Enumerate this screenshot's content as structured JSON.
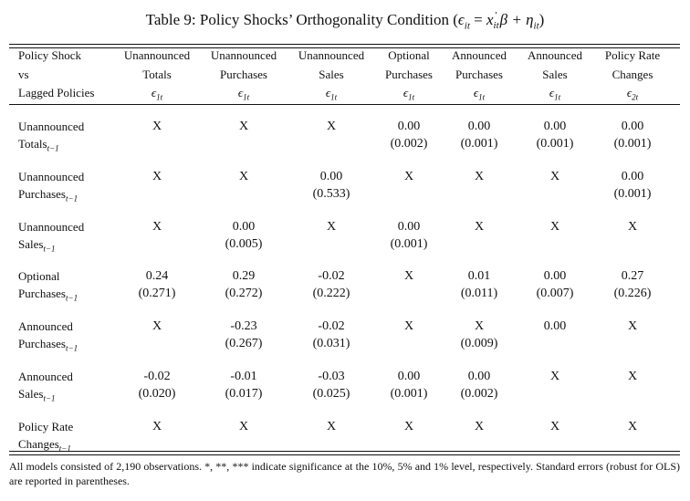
{
  "title": {
    "text": "Table 9: Policy Shocks’ Orthogonality Condition",
    "eq_open": "(",
    "eq_eps": "ϵ",
    "eq_sub1": "it",
    "eq_eq": " = ",
    "eq_x": "x",
    "eq_prime": "′",
    "eq_sub2": "it",
    "eq_beta": "β + η",
    "eq_sub3": "it",
    "eq_close": ")"
  },
  "header": {
    "label_lines": [
      "Policy Shock",
      "vs",
      "Lagged Policies"
    ],
    "columns": [
      {
        "line1": "Unannounced",
        "line2": "Totals",
        "eps": "ϵ",
        "sub": "1t"
      },
      {
        "line1": "Unannounced",
        "line2": "Purchases",
        "eps": "ϵ",
        "sub": "1t"
      },
      {
        "line1": "Unannounced",
        "line2": "Sales",
        "eps": "ϵ",
        "sub": "1t"
      },
      {
        "line1": "Optional",
        "line2": "Purchases",
        "eps": "ϵ",
        "sub": "1t"
      },
      {
        "line1": "Announced",
        "line2": "Purchases",
        "eps": "ϵ",
        "sub": "1t"
      },
      {
        "line1": "Announced",
        "line2": "Sales",
        "eps": "ϵ",
        "sub": "1t"
      },
      {
        "line1": "Policy Rate",
        "line2": "Changes",
        "eps": "ϵ",
        "sub": "2t"
      }
    ]
  },
  "rows": [
    {
      "line1": "Unannounced",
      "line2": "Totals",
      "sub": "t−1",
      "cells": [
        {
          "v": "X",
          "se": ""
        },
        {
          "v": "X",
          "se": ""
        },
        {
          "v": "X",
          "se": ""
        },
        {
          "v": "0.00",
          "se": "(0.002)"
        },
        {
          "v": "0.00",
          "se": "(0.001)"
        },
        {
          "v": "0.00",
          "se": "(0.001)"
        },
        {
          "v": "0.00",
          "se": "(0.001)"
        }
      ]
    },
    {
      "line1": "Unannounced",
      "line2": "Purchases",
      "sub": "t−1",
      "cells": [
        {
          "v": "X",
          "se": ""
        },
        {
          "v": "X",
          "se": ""
        },
        {
          "v": "0.00",
          "se": "(0.533)"
        },
        {
          "v": "X",
          "se": ""
        },
        {
          "v": "X",
          "se": ""
        },
        {
          "v": "X",
          "se": ""
        },
        {
          "v": "0.00",
          "se": "(0.001)"
        }
      ]
    },
    {
      "line1": "Unannounced",
      "line2": "Sales",
      "sub": "t−1",
      "cells": [
        {
          "v": "X",
          "se": ""
        },
        {
          "v": "0.00",
          "se": "(0.005)"
        },
        {
          "v": "X",
          "se": ""
        },
        {
          "v": "0.00",
          "se": "(0.001)"
        },
        {
          "v": "X",
          "se": ""
        },
        {
          "v": "X",
          "se": ""
        },
        {
          "v": "X",
          "se": ""
        }
      ]
    },
    {
      "line1": "Optional",
      "line2": "Purchases",
      "sub": "t−1",
      "cells": [
        {
          "v": "0.24",
          "se": "(0.271)"
        },
        {
          "v": "0.29",
          "se": "(0.272)"
        },
        {
          "v": "-0.02",
          "se": "(0.222)"
        },
        {
          "v": "X",
          "se": ""
        },
        {
          "v": "0.01",
          "se": "(0.011)"
        },
        {
          "v": "0.00",
          "se": "(0.007)"
        },
        {
          "v": "0.27",
          "se": "(0.226)"
        }
      ]
    },
    {
      "line1": "Announced",
      "line2": "Purchases",
      "sub": "t−1",
      "cells": [
        {
          "v": "X",
          "se": ""
        },
        {
          "v": "-0.23",
          "se": "(0.267)"
        },
        {
          "v": "-0.02",
          "se": "(0.031)"
        },
        {
          "v": "X",
          "se": ""
        },
        {
          "v": "X",
          "se": "(0.009)"
        },
        {
          "v": "0.00",
          "se": ""
        },
        {
          "v": "X",
          "se": ""
        }
      ]
    },
    {
      "line1": "Announced",
      "line2": "Sales",
      "sub": "t−1",
      "cells": [
        {
          "v": "-0.02",
          "se": "(0.020)"
        },
        {
          "v": "-0.01",
          "se": "(0.017)"
        },
        {
          "v": "-0.03",
          "se": "(0.025)"
        },
        {
          "v": "0.00",
          "se": "(0.001)"
        },
        {
          "v": "0.00",
          "se": "(0.002)"
        },
        {
          "v": "X",
          "se": ""
        },
        {
          "v": "X",
          "se": ""
        }
      ]
    },
    {
      "line1": "Policy Rate",
      "line2": "Changes",
      "sub": "t−1",
      "cells": [
        {
          "v": "X",
          "se": ""
        },
        {
          "v": "X",
          "se": ""
        },
        {
          "v": "X",
          "se": ""
        },
        {
          "v": "X",
          "se": ""
        },
        {
          "v": "X",
          "se": ""
        },
        {
          "v": "X",
          "se": ""
        },
        {
          "v": "X",
          "se": ""
        }
      ]
    }
  ],
  "footnote": "All models consisted of 2,190 observations. *, **, *** indicate significance at the 10%, 5% and 1% level, respectively. Standard errors (robust for OLS) are reported in parentheses."
}
